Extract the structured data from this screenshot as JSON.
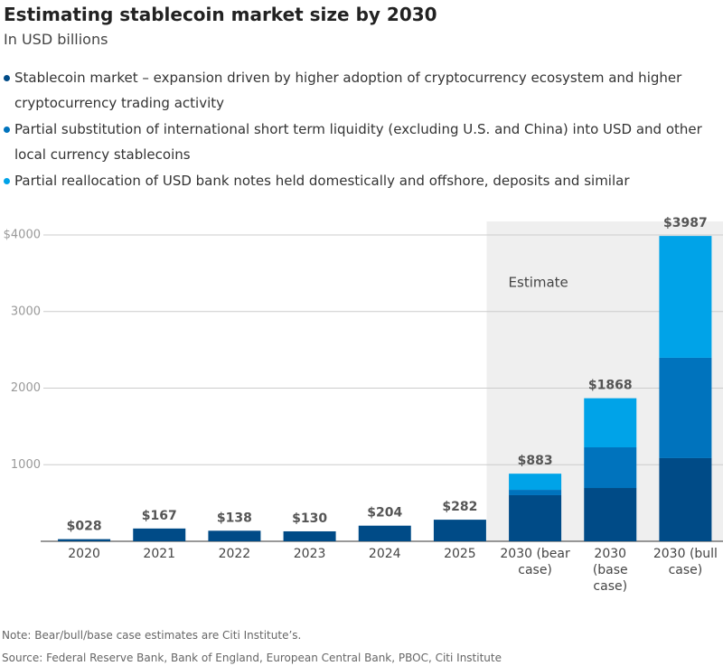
{
  "chart_data": {
    "type": "stacked_bar",
    "title": "Estimating stablecoin market size by 2030",
    "subtitle": "In USD billions",
    "categories": [
      "2020",
      "2021",
      "2022",
      "2023",
      "2024",
      "2025",
      "2030 (bear case)",
      "2030 (base case)",
      "2030 (bull case)"
    ],
    "series": [
      {
        "name": "Stablecoin market – expansion driven by higher adoption of cryptocurrency ecosystem and higher cryptocurrency trading activity",
        "color": "#004b87",
        "values": [
          28,
          167,
          138,
          130,
          204,
          282,
          602,
          696,
          1086
        ]
      },
      {
        "name": "Partial substitution of international short term liquidity (excluding U.S. and China) into USD and other local currency stablecoins",
        "color": "#0073bd",
        "values": [
          null,
          null,
          null,
          null,
          null,
          null,
          70,
          531,
          1310
        ]
      },
      {
        "name": "Partial reallocation of USD bank notes held domestically and offshore, deposits and similar",
        "color": "#00a3e8",
        "values": [
          null,
          null,
          null,
          null,
          null,
          null,
          211,
          641,
          1591
        ]
      }
    ],
    "totals": {
      "values": [
        28,
        167,
        138,
        130,
        204,
        282,
        883,
        1868,
        3987
      ],
      "value_labels": [
        "$028",
        "$167",
        "$138",
        "$130",
        "$204",
        "$282",
        "$883",
        "$1868",
        "$3987"
      ]
    },
    "annotation": "Estimate",
    "ylim": [
      0,
      4000
    ],
    "yticks": [
      {
        "value": 4000,
        "label": "$4000"
      },
      3000,
      2000,
      1000
    ],
    "grid": true,
    "note": "Note: Bear/bull/base case estimates are Citi Institute’s.",
    "source": "Source: Federal Reserve Bank, Bank of England, European Central Bank, PBOC, Citi Institute"
  }
}
